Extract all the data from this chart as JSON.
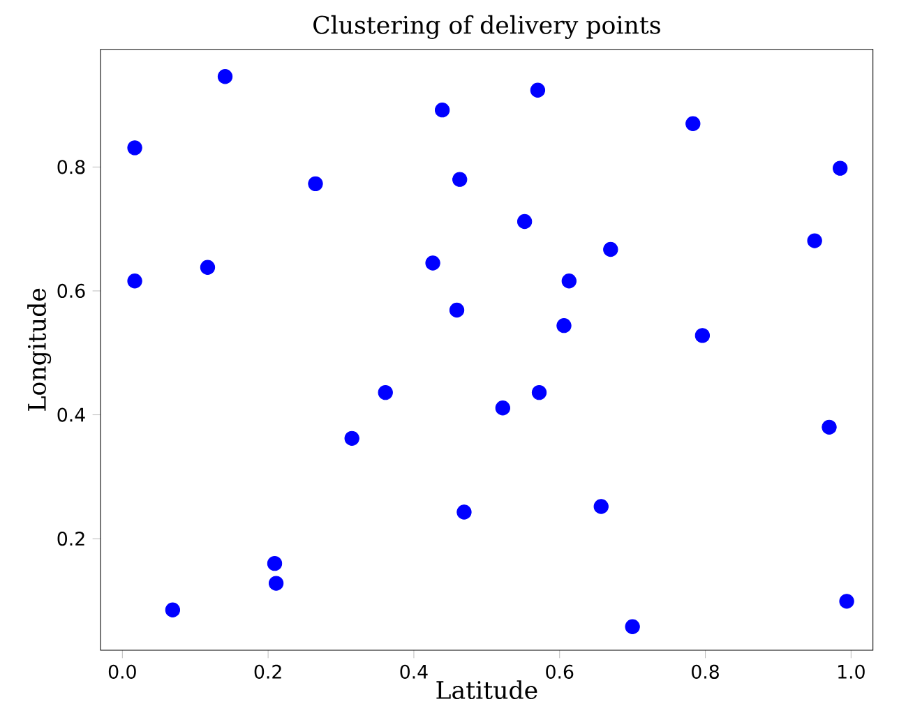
{
  "chart_data": {
    "type": "scatter",
    "title": "Clustering of delivery points",
    "xlabel": "Latitude",
    "ylabel": "Longitude",
    "xlim": [
      -0.03,
      1.03
    ],
    "ylim": [
      0.02,
      0.99
    ],
    "xticks": [
      {
        "value": 0,
        "label": "0.0"
      },
      0.2,
      0.4,
      0.6,
      0.8,
      {
        "value": 1,
        "label": "1.0"
      }
    ],
    "yticks": [
      0.2,
      0.4,
      0.6,
      0.8
    ],
    "marker": "circle",
    "series": [
      {
        "color": "#0000ff",
        "x": [
          0.017,
          0.141,
          0.017,
          0.117,
          0.265,
          0.069,
          0.209,
          0.211,
          0.315,
          0.361,
          0.439,
          0.463,
          0.426,
          0.459,
          0.469,
          0.522,
          0.57,
          0.552,
          0.572,
          0.606,
          0.613,
          0.67,
          0.657,
          0.7,
          0.783,
          0.796,
          0.95,
          0.985,
          0.97,
          0.994
        ],
        "values": [
          0.831,
          0.946,
          0.616,
          0.638,
          0.773,
          0.085,
          0.16,
          0.128,
          0.362,
          0.436,
          0.892,
          0.78,
          0.645,
          0.569,
          0.243,
          0.411,
          0.924,
          0.712,
          0.436,
          0.544,
          0.616,
          0.667,
          0.252,
          0.058,
          0.87,
          0.528,
          0.681,
          0.798,
          0.38,
          0.099
        ]
      }
    ]
  }
}
